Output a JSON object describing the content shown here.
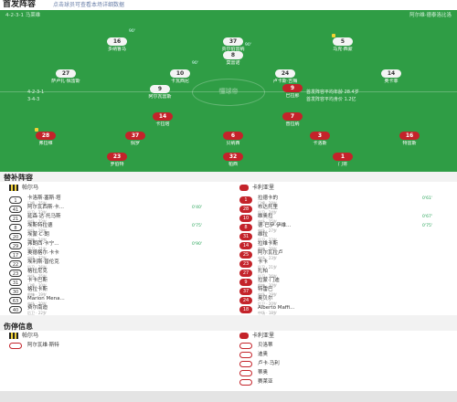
{
  "header": {
    "title": "首发阵容",
    "subtitle": "点击球员可查看本场详细数据"
  },
  "pitch": {
    "home_formation": "4-2-3-1  马莱维",
    "away_formation": "阿尔维·德泰洛比洛",
    "watermark": "懂球帝"
  },
  "home_players": [
    {
      "num": "16",
      "name": "多纳鲁马",
      "sub": "90'",
      "card": false
    },
    {
      "num": "37",
      "name": "贾尔伯雷纳",
      "sub": "",
      "card": false
    },
    {
      "num": "5",
      "name": "马克·西蒙",
      "sub": "",
      "card": true
    },
    {
      "num": "27",
      "name": "萨卢扎·佩雷斯",
      "sub": "",
      "card": false
    },
    {
      "num": "10",
      "name": "卡瓦西尼",
      "sub": "90'",
      "card": false
    },
    {
      "num": "24",
      "name": "卢卡斯·吉梅",
      "sub": "",
      "card": false
    },
    {
      "num": "14",
      "name": "奥卡菲",
      "sub": "",
      "card": false
    },
    {
      "num": "8",
      "name": "莫雷诺",
      "sub": "90'",
      "card": false
    },
    {
      "num": "9",
      "name": "阿尔瓦雷斯",
      "sub": "",
      "card": false
    }
  ],
  "away_players": [
    {
      "num": "9",
      "name": "巴拉那",
      "sub": "",
      "card": false
    },
    {
      "num": "7",
      "name": "普拉纳",
      "sub": "",
      "card": false
    },
    {
      "num": "14",
      "name": "卡拉塔",
      "sub": "",
      "card": false
    },
    {
      "num": "28",
      "name": "弗拉维",
      "sub": "",
      "card": true
    },
    {
      "num": "37",
      "name": "佩罗",
      "sub": "",
      "card": false
    },
    {
      "num": "6",
      "name": "贝纳西",
      "sub": "",
      "card": false
    },
    {
      "num": "3",
      "name": "卡洛斯",
      "sub": "",
      "card": false
    },
    {
      "num": "16",
      "name": "特雷斯",
      "sub": "",
      "card": false
    },
    {
      "num": "23",
      "name": "罗伯特",
      "sub": "",
      "card": false
    },
    {
      "num": "32",
      "name": "帕西",
      "sub": "",
      "card": false
    },
    {
      "num": "1",
      "name": "门将",
      "sub": "",
      "card": true
    }
  ],
  "mid_labels": {
    "left_top": "4-2-3-1",
    "left_bottom": "3-4-3",
    "right_top": "首发阵容平均年龄 28.4岁",
    "right_bottom": "首发阵容平均身价 1.2亿"
  },
  "subs": {
    "title": "替补阵容",
    "home_team": "帕尔马",
    "away_team": "卡利亚里",
    "home": [
      {
        "no": "1",
        "name": "卡洛斯·塞斯·塔",
        "pos": "门将 · 25岁",
        "ev": "",
        "card": false
      },
      {
        "no": "41",
        "name": "阿尔瓦西斯·卡...",
        "pos": "后卫 · 23岁",
        "ev": "0'40'",
        "card": false
      },
      {
        "no": "21",
        "name": "延森·达·托马斯",
        "pos": "中场 · 22岁",
        "ev": "",
        "card": false
      },
      {
        "no": "8",
        "name": "埃斯特拉德",
        "pos": "中场 · 28岁",
        "ev": "0'75'",
        "card": false
      },
      {
        "no": "20",
        "name": "埃蒙·C·朗",
        "pos": "前锋 · 24岁",
        "ev": "",
        "card": false
      },
      {
        "no": "29",
        "name": "弗朗西·卡宁...",
        "pos": "后卫 · 21岁",
        "ev": "0'90'",
        "card": false
      },
      {
        "no": "17",
        "name": "奥德格尔·卡卡",
        "pos": "中场 · 27岁",
        "ev": "",
        "card": false
      },
      {
        "no": "22",
        "name": "埃利斯·普伦克",
        "pos": "后卫 · 26岁",
        "ev": "",
        "card": false
      },
      {
        "no": "23",
        "name": "格拉尼克",
        "pos": "中场 · 25岁",
        "ev": "",
        "card": false
      },
      {
        "no": "31",
        "name": "卡卡巴斯",
        "pos": "门将 · 30岁",
        "ev": "",
        "card": false
      },
      {
        "no": "30",
        "name": "格拉卡斯",
        "pos": "前锋 · 19岁",
        "ev": "",
        "card": false
      },
      {
        "no": "63",
        "name": "Marion Mena...",
        "pos": "中场 · 20岁",
        "ev": "",
        "card": false
      },
      {
        "no": "40",
        "name": "费尔南迪",
        "pos": "后卫 · 22岁",
        "ev": "",
        "card": false
      }
    ],
    "away": [
      {
        "no": "1",
        "name": "拉德卡的",
        "pos": "门将 · 28岁",
        "ev": "0'61'",
        "card": false
      },
      {
        "no": "28",
        "name": "布达托里",
        "pos": "后卫 · 24岁",
        "ev": "",
        "card": false
      },
      {
        "no": "10",
        "name": "维奥拉",
        "pos": "中场 · 25岁",
        "ev": "0'67'",
        "card": false
      },
      {
        "no": "8",
        "name": "德·巴伊·伊维...",
        "pos": "中场 · 27岁",
        "ev": "0'75'",
        "card": false
      },
      {
        "no": "31",
        "name": "维拉",
        "pos": "后卫 · 22岁",
        "ev": "",
        "card": false
      },
      {
        "no": "14",
        "name": "拉维卡斯",
        "pos": "前锋 · 29岁",
        "ev": "",
        "card": false
      },
      {
        "no": "25",
        "name": "阿尔瓦拉卢",
        "pos": "中场 · 23岁",
        "ev": "",
        "card": false
      },
      {
        "no": "23",
        "name": "卡卡",
        "pos": "后卫 · 21岁",
        "ev": "",
        "card": false
      },
      {
        "no": "27",
        "name": "扎帕",
        "pos": "后卫 · 26岁",
        "ev": "",
        "card": false
      },
      {
        "no": "9",
        "name": "拉蒙·门迪",
        "pos": "前锋 · 30岁",
        "ev": "",
        "card": false
      },
      {
        "no": "37",
        "name": "特雷巴",
        "pos": "中场 · 19岁",
        "ev": "",
        "card": false
      },
      {
        "no": "24",
        "name": "奥贝尔",
        "pos": "后卫 · 20岁",
        "ev": "",
        "card": false
      },
      {
        "no": "18",
        "name": "Alberto Maffi...",
        "pos": "中场 · 18岁",
        "ev": "",
        "card": false
      }
    ]
  },
  "injuries": {
    "title": "伤停信息",
    "home_team": "帕尔马",
    "away_team": "卡利亚里",
    "home": [
      "阿尔瓦维·斯特"
    ],
    "away": [
      "贝洛蒂",
      "迪奥",
      "卢卡·马利",
      "蒂奥",
      "赛莱亚"
    ]
  }
}
